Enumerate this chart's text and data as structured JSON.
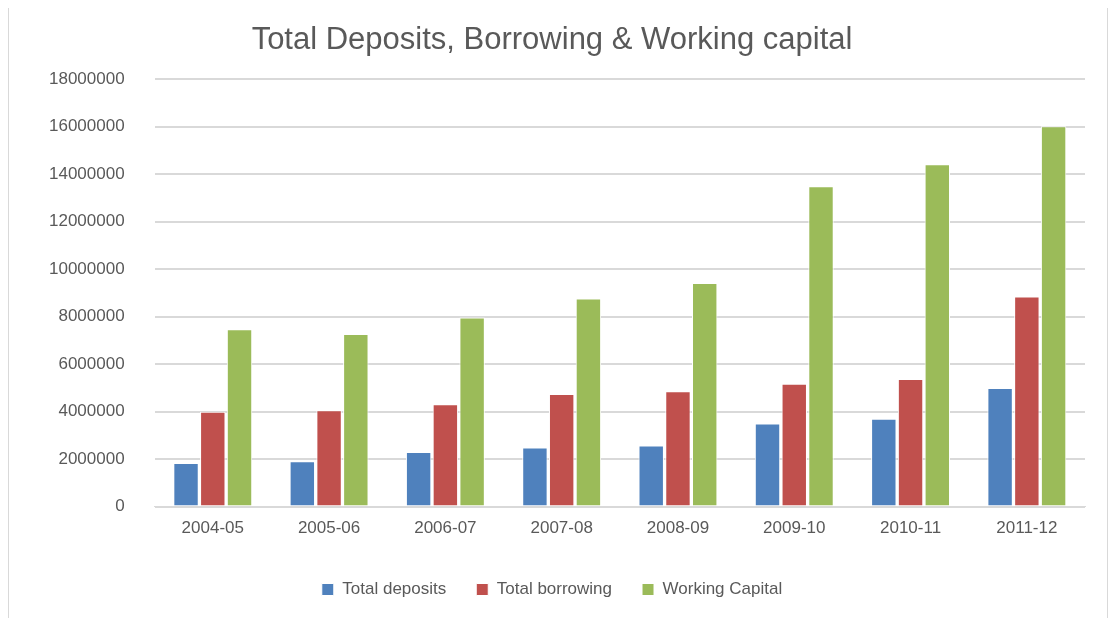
{
  "chart_data": {
    "type": "bar",
    "title": "Total Deposits, Borrowing & Working capital",
    "categories": [
      "2004-05",
      "2005-06",
      "2006-07",
      "2007-08",
      "2008-09",
      "2009-10",
      "2010-11",
      "2011-12"
    ],
    "series": [
      {
        "name": "Total deposits",
        "color": "#4f81bd",
        "values": [
          1840000,
          1910000,
          2300000,
          2490000,
          2570000,
          3500000,
          3700000,
          4990000
        ]
      },
      {
        "name": "Total borrowing",
        "color": "#c0504d",
        "values": [
          3990000,
          4060000,
          4310000,
          4740000,
          4860000,
          5170000,
          5370000,
          8850000
        ]
      },
      {
        "name": "Working Capital",
        "color": "#9bbb59",
        "values": [
          7470000,
          7270000,
          7960000,
          8760000,
          9420000,
          13490000,
          14420000,
          16020000
        ]
      }
    ],
    "ylim": [
      0,
      18000000
    ],
    "yticks": [
      0,
      2000000,
      4000000,
      6000000,
      8000000,
      10000000,
      12000000,
      14000000,
      16000000,
      18000000
    ],
    "grid": "y",
    "legend": "bottom"
  }
}
